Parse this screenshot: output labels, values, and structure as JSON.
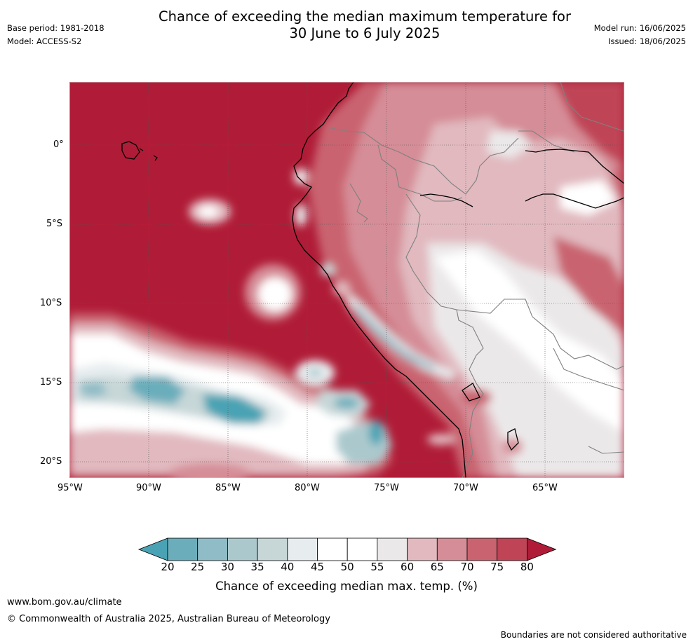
{
  "title_line1": "Chance of exceeding the median maximum temperature for",
  "title_line2": "30 June to 6 July 2025",
  "base_period": "Base period: 1981-2018",
  "model": "Model: ACCESS-S2",
  "model_run": "Model run: 16/06/2025",
  "issued": "Issued: 18/06/2025",
  "lat_labels": [
    "0°",
    "5°S",
    "10°S",
    "15°S",
    "20°S"
  ],
  "lon_labels": [
    "95°W",
    "90°W",
    "85°W",
    "80°W",
    "75°W",
    "70°W",
    "65°W"
  ],
  "colorbar": {
    "label": "Chance of exceeding median max. temp. (%)",
    "ticks": [
      "20",
      "25",
      "30",
      "35",
      "40",
      "45",
      "50",
      "55",
      "60",
      "65",
      "70",
      "75",
      "80"
    ],
    "colors": [
      "#4aa3b4",
      "#6badbb",
      "#8fbcc6",
      "#abc9cd",
      "#c7d7d8",
      "#e7edef",
      "#ffffff",
      "#ffffff",
      "#ebe8e9",
      "#e1b9bf",
      "#d58d97",
      "#c9636f",
      "#bf4456",
      "#b01c37"
    ]
  },
  "footer_url": "www.bom.gov.au/climate",
  "footer_copyright": "© Commonwealth of Australia 2025, Australian Bureau of Meteorology",
  "footer_note": "Boundaries are not considered authoritative"
}
